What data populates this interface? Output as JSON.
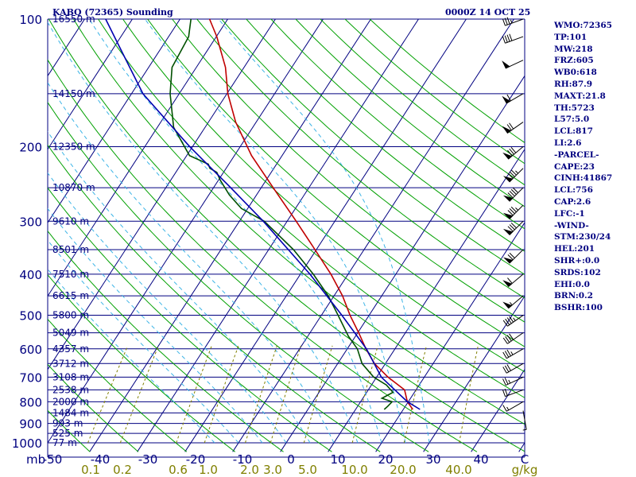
{
  "header": {
    "station": "KABQ (72365) Sounding",
    "date": "0000Z 14 OCT 25"
  },
  "indices": [
    "WMO:72365",
    "TP:101",
    "MW:218",
    "FRZ:605",
    "WB0:618",
    "RH:87.9",
    "MAXT:21.8",
    "TH:5723",
    "L57:5.0",
    "LCL:817",
    "LI:2.6",
    "-PARCEL-",
    "CAPE:23",
    "CINH:41867",
    "LCL:756",
    "CAP:2.6",
    "LFC:-1",
    "-WIND-",
    "STM:230/24",
    "HEL:201",
    "SHR+:0.0",
    "SRDS:102",
    "EHI:0.0",
    "BRN:0.2",
    "BSHR:100"
  ],
  "colors": {
    "isobar": "#000080",
    "isotherm": "#000080",
    "dry_adiabat": "#00a000",
    "moist_adiabat": "#3cb4e6",
    "mixing_ratio": "#808000",
    "temperature": "#c00000",
    "dewpoint": "#005000",
    "parcel": "#0000b0",
    "wind": "#000000",
    "text": "#000080"
  },
  "chart_data": {
    "type": "skew-t",
    "ylim": [
      1000,
      100
    ],
    "xlim": [
      -50,
      50
    ],
    "pressure_levels": [
      100,
      150,
      200,
      250,
      300,
      350,
      400,
      450,
      500,
      550,
      600,
      650,
      700,
      750,
      800,
      850,
      900,
      950,
      1000
    ],
    "pressure_tick_labels": [
      "100",
      "200",
      "300",
      "400",
      "500",
      "600",
      "700",
      "800",
      "900",
      "1000"
    ],
    "heights": [
      {
        "p": 100,
        "label": "16550 m"
      },
      {
        "p": 150,
        "label": "14150 m"
      },
      {
        "p": 200,
        "label": "12350 m"
      },
      {
        "p": 250,
        "label": "10870 m"
      },
      {
        "p": 300,
        "label": "9610 m"
      },
      {
        "p": 350,
        "label": "8501 m"
      },
      {
        "p": 400,
        "label": "7510 m"
      },
      {
        "p": 450,
        "label": "6615 m"
      },
      {
        "p": 500,
        "label": "5800 m"
      },
      {
        "p": 550,
        "label": "5049 m"
      },
      {
        "p": 600,
        "label": "4357 m"
      },
      {
        "p": 650,
        "label": "3712 m"
      },
      {
        "p": 700,
        "label": "3108 m"
      },
      {
        "p": 750,
        "label": "2538 m"
      },
      {
        "p": 800,
        "label": "2000 m"
      },
      {
        "p": 850,
        "label": "1484 m"
      },
      {
        "p": 900,
        "label": "993 m"
      },
      {
        "p": 950,
        "label": "525 m"
      },
      {
        "p": 1000,
        "label": "77 m"
      }
    ],
    "temp_ticks": [
      -50,
      -40,
      -30,
      -20,
      -10,
      0,
      10,
      20,
      30,
      40,
      50
    ],
    "temp_tick_labels": [
      "-50",
      "-40",
      "-30",
      "-20",
      "-10",
      "0",
      "10",
      "20",
      "30",
      "40",
      "C"
    ],
    "x_unit_left": "mb",
    "mixing_ratio_labels": [
      "0.1",
      "0.2",
      "0.6",
      "1.0",
      "2.0",
      "3.0",
      "5.0",
      "10.0",
      "20.0",
      "40.0"
    ],
    "mixing_ratio_unit": "g/kg",
    "isotherms_c": [
      -150,
      -140,
      -130,
      -120,
      -110,
      -100,
      -90,
      -80,
      -70,
      -60,
      -50,
      -40,
      -30,
      -20,
      -10,
      0,
      10,
      20,
      30,
      40,
      50
    ],
    "dry_adiabats_k": [
      230,
      240,
      250,
      260,
      270,
      280,
      290,
      300,
      310,
      320,
      330,
      340,
      350,
      360,
      370,
      380,
      390,
      400,
      410,
      420,
      430,
      440,
      450
    ],
    "moist_adiabats_c": [
      -15,
      -10,
      -5,
      0,
      5,
      10,
      15,
      20,
      25,
      30
    ],
    "mixing_ratios_gkg": [
      0.1,
      0.2,
      0.6,
      1.0,
      2.0,
      3.0,
      5.0,
      10.0,
      20.0,
      40.0
    ],
    "series": [
      {
        "name": "temperature",
        "points": [
          [
            834,
            22.0
          ],
          [
            800,
            19.8
          ],
          [
            750,
            17.6
          ],
          [
            700,
            12.4
          ],
          [
            650,
            7.7
          ],
          [
            600,
            3.9
          ],
          [
            550,
            0.2
          ],
          [
            500,
            -4.0
          ],
          [
            450,
            -8.2
          ],
          [
            400,
            -13.6
          ],
          [
            350,
            -20.3
          ],
          [
            300,
            -28.1
          ],
          [
            250,
            -37.5
          ],
          [
            210,
            -46.4
          ],
          [
            175,
            -54.3
          ],
          [
            150,
            -59.8
          ],
          [
            130,
            -63.9
          ],
          [
            110,
            -69.9
          ],
          [
            100,
            -73.8
          ]
        ]
      },
      {
        "name": "dewpoint",
        "points": [
          [
            834,
            16.0
          ],
          [
            820,
            16.3
          ],
          [
            800,
            16.6
          ],
          [
            785,
            14.0
          ],
          [
            760,
            15.5
          ],
          [
            730,
            13.1
          ],
          [
            700,
            9.4
          ],
          [
            650,
            5.1
          ],
          [
            600,
            2.1
          ],
          [
            560,
            -1.5
          ],
          [
            500,
            -6.5
          ],
          [
            450,
            -11.2
          ],
          [
            400,
            -17.3
          ],
          [
            350,
            -24.8
          ],
          [
            300,
            -34.8
          ],
          [
            280,
            -41.3
          ],
          [
            260,
            -45.7
          ],
          [
            245,
            -48.6
          ],
          [
            240,
            -49.6
          ],
          [
            230,
            -51.4
          ],
          [
            225,
            -53.4
          ],
          [
            220,
            -54.3
          ],
          [
            210,
            -59.4
          ],
          [
            180,
            -66.6
          ],
          [
            150,
            -71.9
          ],
          [
            130,
            -75.1
          ],
          [
            110,
            -75.8
          ],
          [
            100,
            -77.7
          ]
        ]
      },
      {
        "name": "parcel",
        "points": [
          [
            834,
            23.5
          ],
          [
            800,
            19.8
          ],
          [
            700,
            11.0
          ],
          [
            600,
            4.0
          ],
          [
            500,
            -5.7
          ],
          [
            400,
            -18.0
          ],
          [
            300,
            -35.0
          ],
          [
            250,
            -46.4
          ],
          [
            200,
            -60.6
          ],
          [
            150,
            -77.6
          ],
          [
            115,
            -89.4
          ],
          [
            100,
            -95.6
          ]
        ]
      }
    ],
    "wind": [
      {
        "p": 840,
        "dir": 170,
        "spd": 5
      },
      {
        "p": 800,
        "dir": 240,
        "spd": 15
      },
      {
        "p": 750,
        "dir": 250,
        "spd": 20
      },
      {
        "p": 700,
        "dir": 245,
        "spd": 25
      },
      {
        "p": 650,
        "dir": 240,
        "spd": 30
      },
      {
        "p": 600,
        "dir": 240,
        "spd": 35
      },
      {
        "p": 550,
        "dir": 235,
        "spd": 40
      },
      {
        "p": 500,
        "dir": 235,
        "spd": 45
      },
      {
        "p": 450,
        "dir": 230,
        "spd": 55
      },
      {
        "p": 400,
        "dir": 230,
        "spd": 60
      },
      {
        "p": 350,
        "dir": 225,
        "spd": 70
      },
      {
        "p": 300,
        "dir": 225,
        "spd": 80
      },
      {
        "p": 275,
        "dir": 225,
        "spd": 85
      },
      {
        "p": 250,
        "dir": 225,
        "spd": 90
      },
      {
        "p": 225,
        "dir": 225,
        "spd": 85
      },
      {
        "p": 200,
        "dir": 230,
        "spd": 80
      },
      {
        "p": 175,
        "dir": 235,
        "spd": 70
      },
      {
        "p": 150,
        "dir": 240,
        "spd": 60
      },
      {
        "p": 125,
        "dir": 245,
        "spd": 50
      },
      {
        "p": 110,
        "dir": 250,
        "spd": 40
      },
      {
        "p": 100,
        "dir": 250,
        "spd": 35
      }
    ]
  }
}
